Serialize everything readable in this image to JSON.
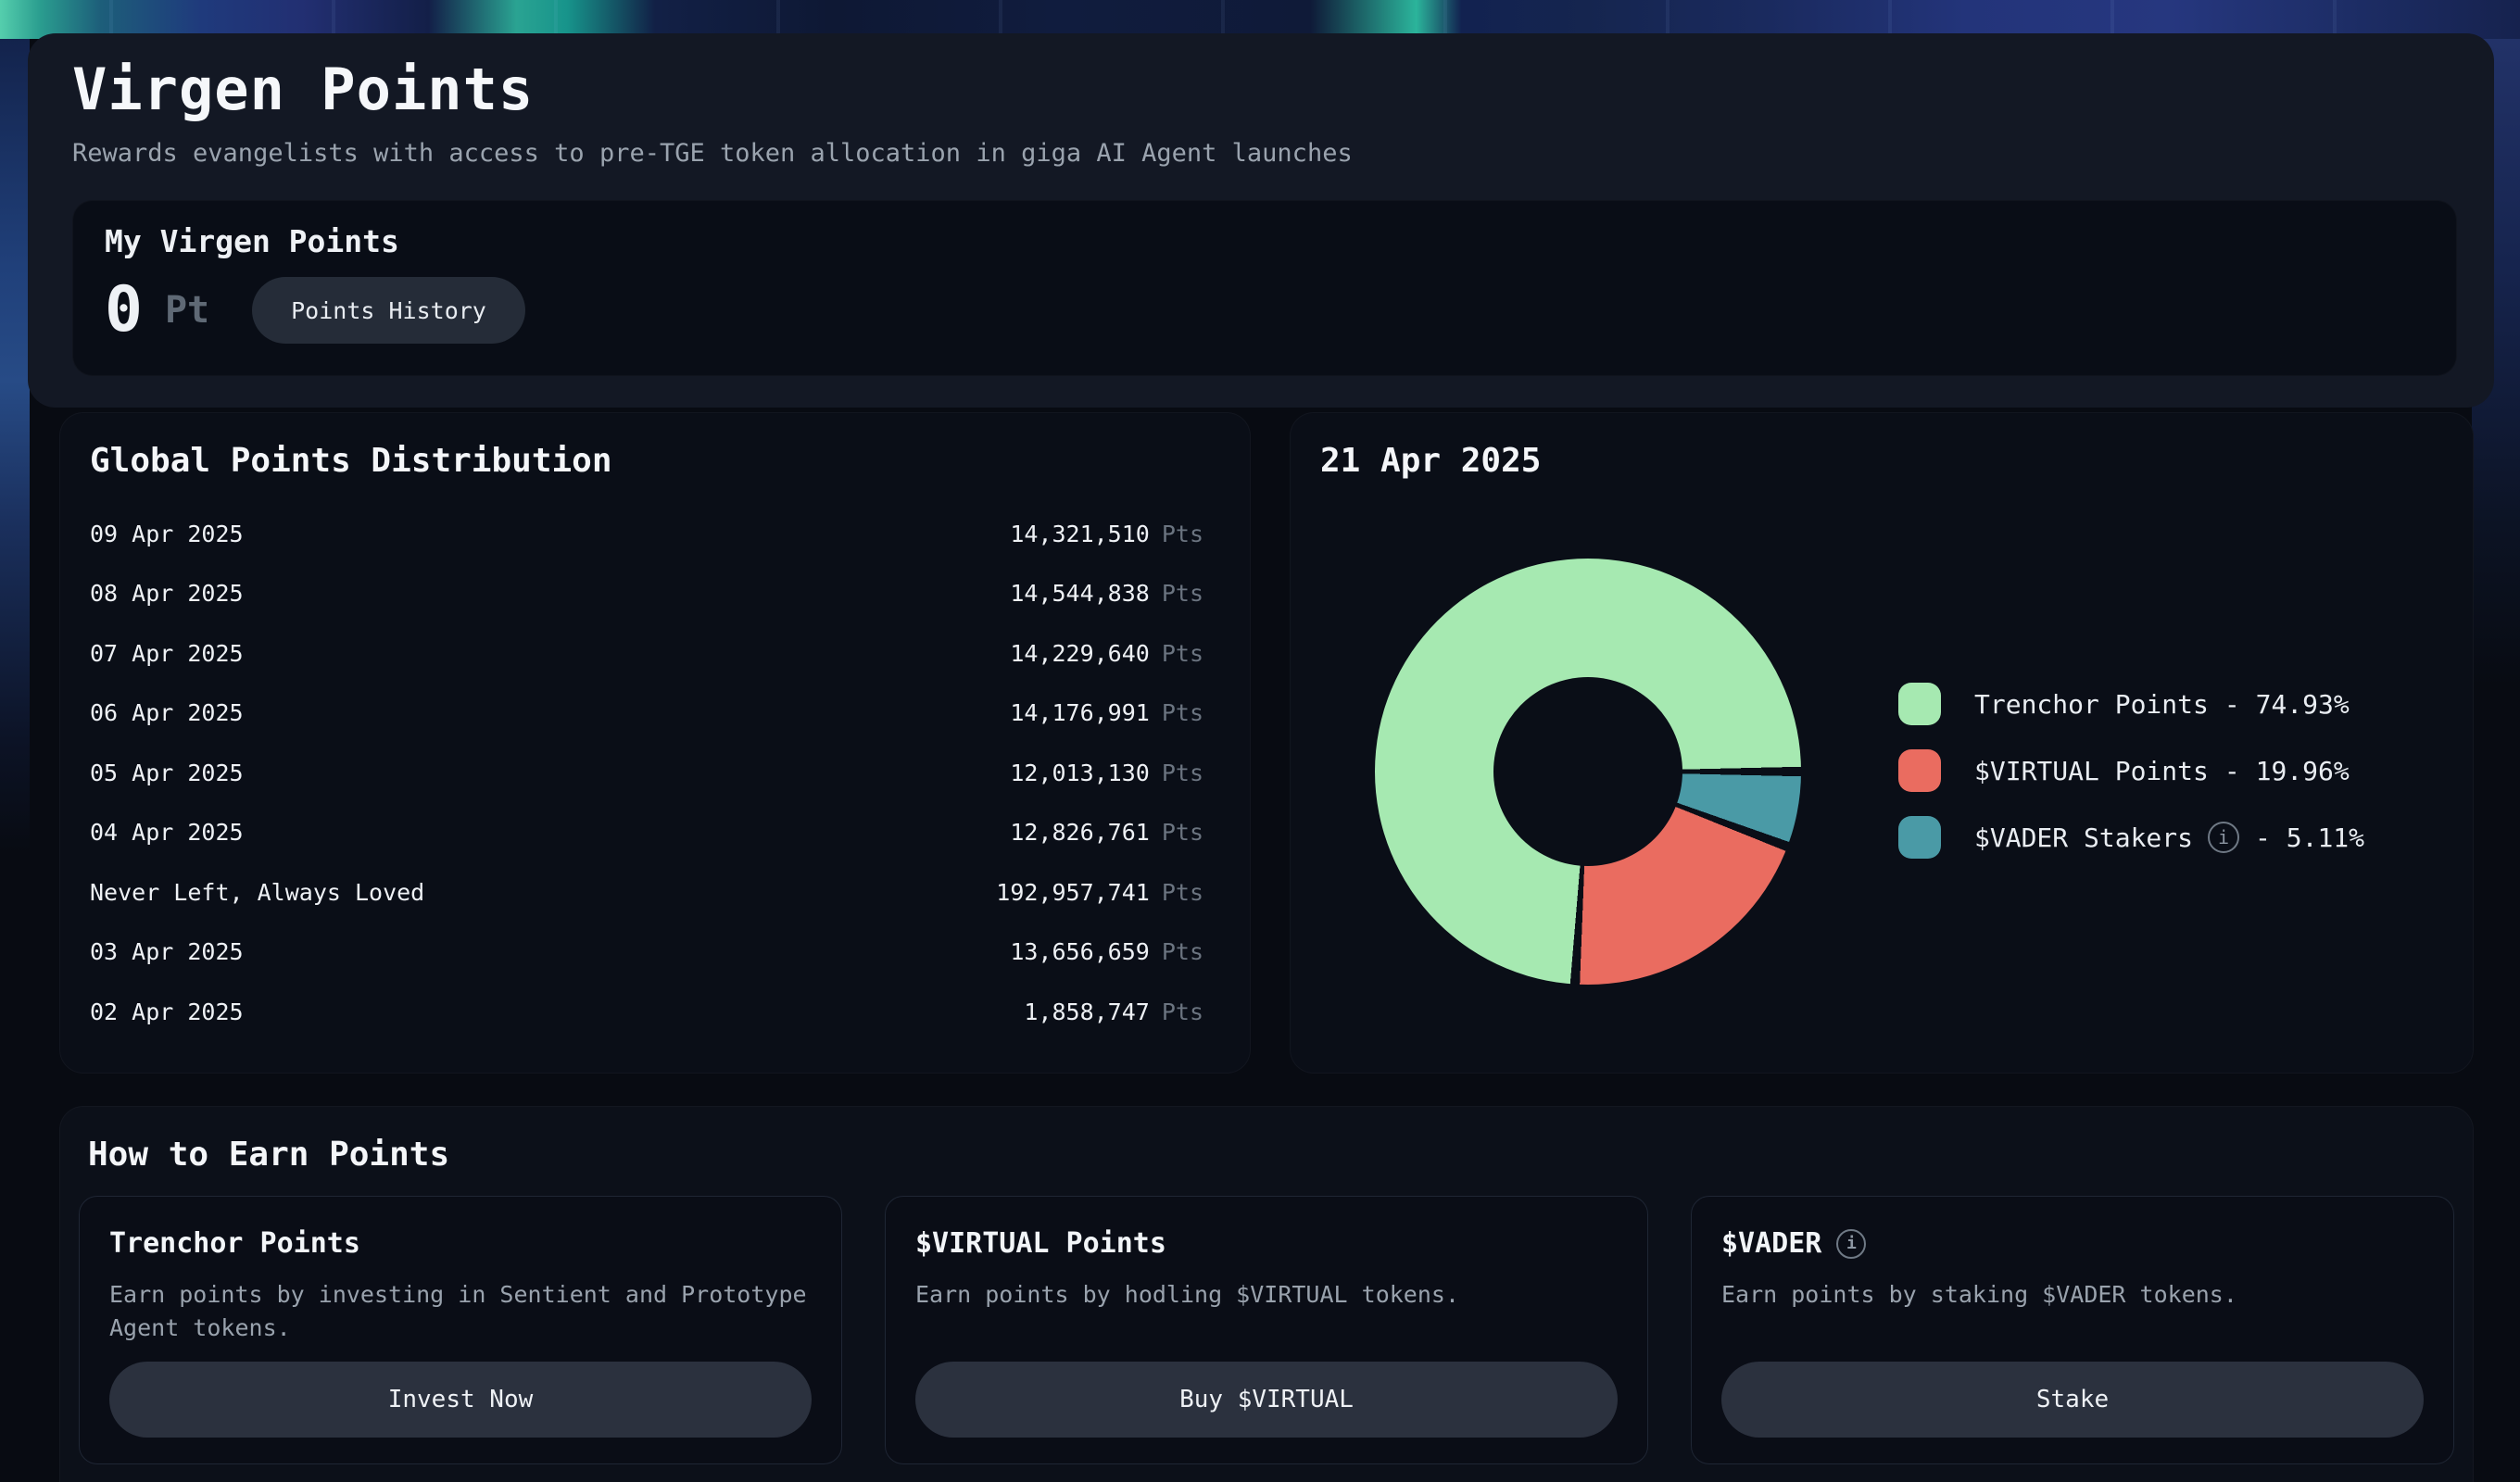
{
  "page": {
    "title": "Virgen Points",
    "subtitle": "Rewards evangelists with access to pre-TGE token allocation in giga AI Agent launches"
  },
  "my_points": {
    "title": "My Virgen Points",
    "value": "0",
    "unit": "Pt",
    "history_button": "Points History"
  },
  "distribution": {
    "title": "Global Points Distribution",
    "unit": "Pts",
    "rows": [
      {
        "label": "09 Apr 2025",
        "value": "14,321,510"
      },
      {
        "label": "08 Apr 2025",
        "value": "14,544,838"
      },
      {
        "label": "07 Apr 2025",
        "value": "14,229,640"
      },
      {
        "label": "06 Apr 2025",
        "value": "14,176,991"
      },
      {
        "label": "05 Apr 2025",
        "value": "12,013,130"
      },
      {
        "label": "04 Apr 2025",
        "value": "12,826,761"
      },
      {
        "label": "Never Left, Always Loved",
        "value": "192,957,741"
      },
      {
        "label": "03 Apr 2025",
        "value": "13,656,659"
      },
      {
        "label": "02 Apr 2025",
        "value": "1,858,747"
      }
    ]
  },
  "chart": {
    "title": "21 Apr 2025",
    "type": "donut",
    "gap_color": "#0a0e17",
    "slices": [
      {
        "label": "Trenchor Points",
        "pct": 74.93,
        "pct_display": "- 74.93%",
        "color": "#a6e9b1"
      },
      {
        "label": "$VIRTUAL Points",
        "pct": 19.96,
        "pct_display": "- 19.96%",
        "color": "#ea6c60"
      },
      {
        "label": "$VADER Stakers",
        "pct": 5.11,
        "pct_display": "- 5.11%",
        "color": "#4a9aa6"
      }
    ]
  },
  "earn": {
    "title": "How to Earn Points",
    "cards": [
      {
        "title": "Trenchor Points",
        "description": "Earn points by investing in Sentient and Prototype Agent tokens.",
        "button": "Invest Now"
      },
      {
        "title": "$VIRTUAL Points",
        "description": "Earn points by hodling $VIRTUAL tokens.",
        "button": "Buy $VIRTUAL"
      },
      {
        "title": "$VADER",
        "description": "Earn points by staking $VADER tokens.",
        "button": "Stake"
      }
    ]
  },
  "icons": {
    "info": "i"
  },
  "colors": {
    "page_bg": "#080b12",
    "hero_bg": "#131824",
    "card_bg": "#0a0e17",
    "button_bg": "#2b313e",
    "text_muted": "#9aa3ae",
    "green": "#a6e9b1",
    "red": "#ea6c60",
    "teal": "#4a9aa6"
  }
}
